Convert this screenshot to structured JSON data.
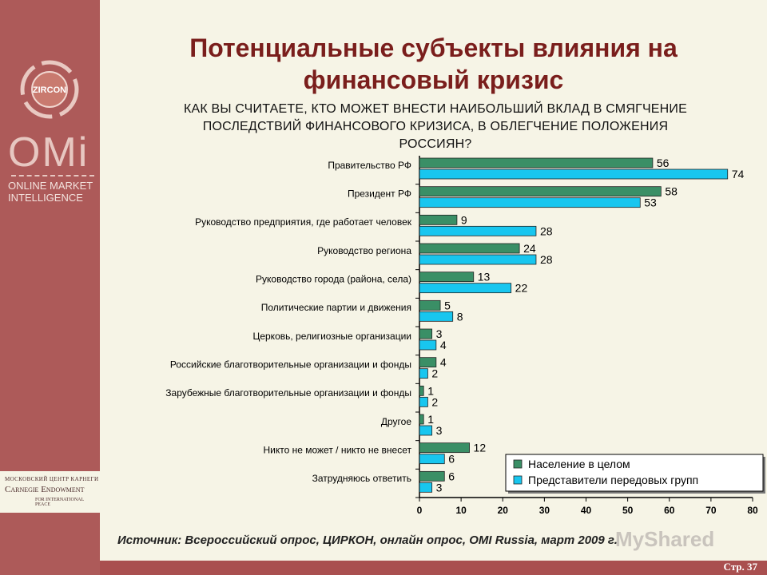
{
  "sidebar": {
    "logo_zircon": "ZIRCON",
    "logo_omi_big": "OMi",
    "logo_omi_line1": "ONLINE MARKET",
    "logo_omi_line2": "INTELLIGENCE",
    "carnegie_line1": "МОСКОВСКИЙ ЦЕНТР КАРНЕГИ",
    "carnegie_line2": "Carnegie Endowment",
    "carnegie_line3": "FOR INTERNATIONAL PEACE"
  },
  "slide": {
    "title_line1": "Потенциальные субъекты влияния на",
    "title_line2": "финансовый кризис",
    "question_line1": "КАК ВЫ СЧИТАЕТЕ, КТО МОЖЕТ ВНЕСТИ НАИБОЛЬШИЙ ВКЛАД В СМЯГЧЕНИЕ",
    "question_line2": "ПОСЛЕДСТВИЙ ФИНАНСОВОГО КРИЗИСА, В ОБЛЕГЧЕНИЕ ПОЛОЖЕНИЯ",
    "question_line3": "РОССИЯН?",
    "source": "Источник: Всероссийский опрос, ЦИРКОН, онлайн опрос, OMI Russia, март 2009 г.",
    "page": "Стр. 37",
    "watermark": "MyShared"
  },
  "colors": {
    "series_population": "#3a8f66",
    "series_advanced": "#18c6ef",
    "title": "#7a1e1c",
    "sidebar": "#ad5a59"
  },
  "chart_data": {
    "type": "bar",
    "orientation": "horizontal",
    "categories": [
      "Правительство РФ",
      "Президент РФ",
      "Руководство предприятия, где работает человек",
      "Руководство региона",
      "Руководство города (района, села)",
      "Политические партии и движения",
      "Церковь, религиозные организации",
      "Российские благотворительные организации и фонды",
      "Зарубежные благотворительные организации и фонды",
      "Другое",
      "Никто не может / никто не внесет",
      "Затрудняюсь ответить"
    ],
    "series": [
      {
        "name": "Население в целом",
        "color": "#3a8f66",
        "values": [
          56,
          58,
          9,
          24,
          13,
          5,
          3,
          4,
          1,
          1,
          12,
          6
        ]
      },
      {
        "name": "Представители передовых групп",
        "color": "#18c6ef",
        "values": [
          74,
          53,
          28,
          28,
          22,
          8,
          4,
          2,
          2,
          3,
          6,
          3
        ]
      }
    ],
    "xlim": [
      0,
      80
    ],
    "xticks": [
      0,
      10,
      20,
      30,
      40,
      50,
      60,
      70,
      80
    ],
    "legend_position": "bottom-right",
    "grid": false
  }
}
